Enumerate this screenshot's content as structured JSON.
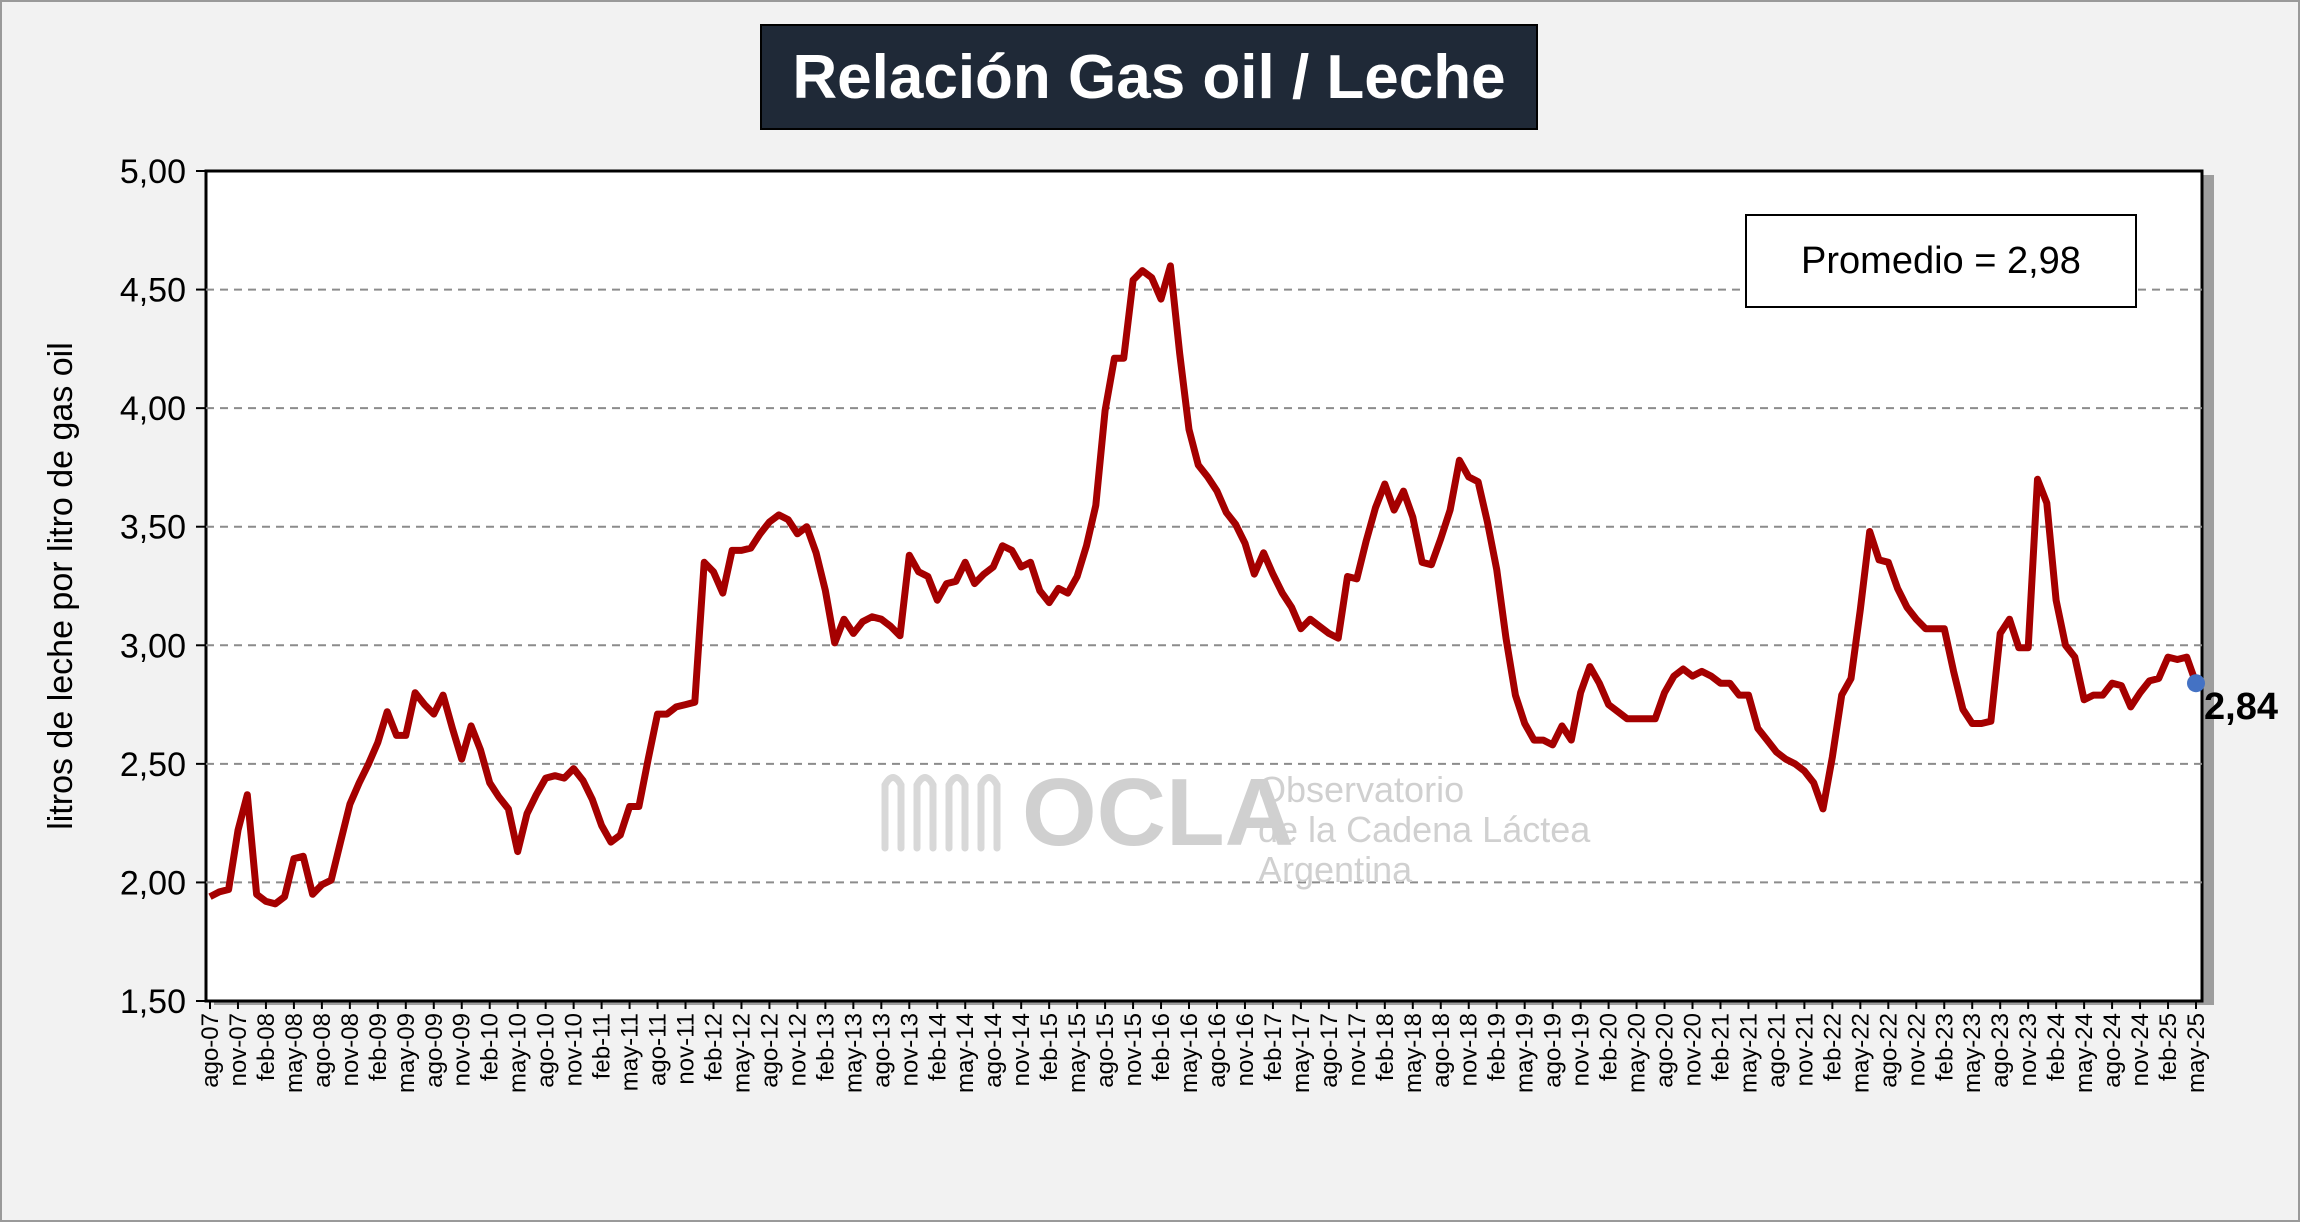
{
  "title": "Relación Gas oil / Leche",
  "average_label": "Promedio = 2,98",
  "last_value_label": "2,84",
  "watermark": {
    "logo_text": "OCLA",
    "line1": "Observatorio",
    "line2": "de la Cadena Láctea",
    "line3": "Argentina"
  },
  "colors": {
    "series": "#a50000",
    "last_point": "#4472c4",
    "title_bg": "#1f2937",
    "grid": "#8c8c8c"
  },
  "chart_data": {
    "type": "line",
    "title": "Relación Gas oil / Leche",
    "ylabel": "litros de leche por litro de gas oil",
    "xlabel": "",
    "ylim": [
      1.5,
      5.0
    ],
    "yticks": [
      "1,50",
      "2,00",
      "2,50",
      "3,00",
      "3,50",
      "4,00",
      "4,50",
      "5,00"
    ],
    "grid": "horizontal dashed",
    "x_tick_labels": [
      "ago-07",
      "nov-07",
      "feb-08",
      "may-08",
      "ago-08",
      "nov-08",
      "feb-09",
      "may-09",
      "ago-09",
      "nov-09",
      "feb-10",
      "may-10",
      "ago-10",
      "nov-10",
      "feb-11",
      "may-11",
      "ago-11",
      "nov-11",
      "feb-12",
      "may-12",
      "ago-12",
      "nov-12",
      "feb-13",
      "may-13",
      "ago-13",
      "nov-13",
      "feb-14",
      "may-14",
      "ago-14",
      "nov-14",
      "feb-15",
      "may-15",
      "ago-15",
      "nov-15",
      "feb-16",
      "may-16",
      "ago-16",
      "nov-16",
      "feb-17",
      "may-17",
      "ago-17",
      "nov-17",
      "feb-18",
      "may-18",
      "ago-18",
      "nov-18",
      "feb-19",
      "may-19",
      "ago-19",
      "nov-19",
      "feb-20",
      "may-20",
      "ago-20",
      "nov-20",
      "feb-21",
      "may-21",
      "ago-21",
      "nov-21",
      "feb-22",
      "may-22",
      "ago-22",
      "nov-22",
      "feb-23",
      "may-23",
      "ago-23",
      "nov-23",
      "feb-24",
      "may-24",
      "ago-24",
      "nov-24",
      "feb-25",
      "may-25"
    ],
    "series": [
      {
        "values": [
          1.94,
          1.96,
          1.97,
          2.22,
          2.37,
          1.95,
          1.92,
          1.91,
          1.94,
          2.1,
          2.11,
          1.95,
          1.99,
          2.01,
          2.17,
          2.33,
          2.42,
          2.5,
          2.59,
          2.72,
          2.62,
          2.62,
          2.8,
          2.75,
          2.71,
          2.79,
          2.65,
          2.52,
          2.66,
          2.56,
          2.42,
          2.36,
          2.31,
          2.13,
          2.29,
          2.37,
          2.44,
          2.45,
          2.44,
          2.48,
          2.43,
          2.35,
          2.24,
          2.17,
          2.2,
          2.32,
          2.32,
          2.52,
          2.71,
          2.71,
          2.74,
          2.75,
          2.76,
          3.35,
          3.31,
          3.22,
          3.4,
          3.4,
          3.41,
          3.47,
          3.52,
          3.55,
          3.53,
          3.47,
          3.5,
          3.39,
          3.23,
          3.01,
          3.11,
          3.05,
          3.1,
          3.12,
          3.11,
          3.08,
          3.04,
          3.38,
          3.31,
          3.29,
          3.19,
          3.26,
          3.27,
          3.35,
          3.26,
          3.3,
          3.33,
          3.42,
          3.4,
          3.33,
          3.35,
          3.23,
          3.18,
          3.24,
          3.22,
          3.29,
          3.42,
          3.59,
          3.99,
          4.21,
          4.21,
          4.54,
          4.58,
          4.55,
          4.46,
          4.6,
          4.23,
          3.91,
          3.76,
          3.71,
          3.65,
          3.56,
          3.51,
          3.43,
          3.3,
          3.39,
          3.3,
          3.22,
          3.16,
          3.07,
          3.11,
          3.08,
          3.05,
          3.03,
          3.29,
          3.28,
          3.44,
          3.58,
          3.68,
          3.57,
          3.65,
          3.54,
          3.35,
          3.34,
          3.45,
          3.57,
          3.78,
          3.71,
          3.69,
          3.52,
          3.32,
          3.03,
          2.79,
          2.67,
          2.6,
          2.6,
          2.58,
          2.66,
          2.6,
          2.8,
          2.91,
          2.84,
          2.75,
          2.72,
          2.69,
          2.69,
          2.69,
          2.69,
          2.8,
          2.87,
          2.9,
          2.87,
          2.89,
          2.87,
          2.84,
          2.84,
          2.79,
          2.79,
          2.65,
          2.6,
          2.55,
          2.52,
          2.5,
          2.47,
          2.42,
          2.31,
          2.53,
          2.79,
          2.86,
          3.15,
          3.48,
          3.36,
          3.35,
          3.24,
          3.16,
          3.11,
          3.07,
          3.07,
          3.07,
          2.89,
          2.73,
          2.67,
          2.67,
          2.68,
          3.05,
          3.11,
          2.99,
          2.99,
          3.7,
          3.6,
          3.19,
          3.0,
          2.95,
          2.77,
          2.79,
          2.79,
          2.84,
          2.83,
          2.74,
          2.8,
          2.85,
          2.86,
          2.95,
          2.94,
          2.95,
          2.84
        ]
      }
    ],
    "annotations": [
      "Promedio = 2,98",
      "2,84"
    ]
  }
}
